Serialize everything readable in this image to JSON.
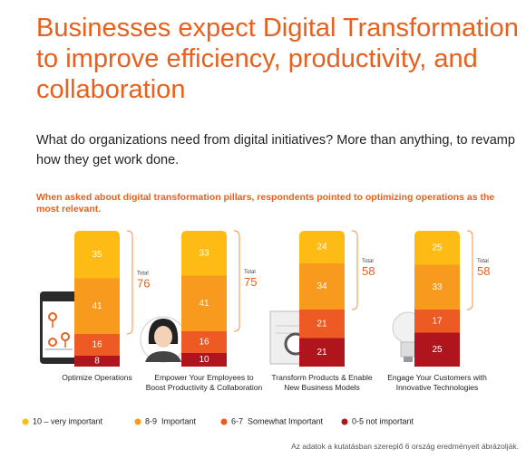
{
  "title": "Businesses expect Digital Transformation to improve efficiency, productivity, and collaboration",
  "subtitle": "What do organizations need from digital initiatives? More than anything, to revamp how they get work done.",
  "chart_data": {
    "type": "bar",
    "stacked": true,
    "title": "When asked about digital transformation pillars, respondents pointed to optimizing operations as the most relevant.",
    "categories": [
      "Optimize Operations",
      "Empower Your Employees to Boost Productivity & Collaboration",
      "Transform Products & Enable New Business Models",
      "Engage Your Customers with Innovative Technologies"
    ],
    "series": [
      {
        "name": "10 – very important",
        "color": "#FDBB13",
        "values": [
          35,
          33,
          24,
          25
        ]
      },
      {
        "name": "8-9  Important",
        "color": "#F79A1E",
        "values": [
          41,
          41,
          34,
          33
        ]
      },
      {
        "name": "6-7  Somewhat Important",
        "color": "#EE5A24",
        "values": [
          16,
          16,
          21,
          17
        ]
      },
      {
        "name": "0-5 not important",
        "color": "#B0151E",
        "values": [
          8,
          10,
          21,
          25
        ]
      }
    ],
    "totals": {
      "label": "Total",
      "values": [
        76,
        75,
        58,
        58
      ]
    }
  },
  "footnote": "Az adatok a kutatásban szereplő 6 ország eredményeit ábrázolják."
}
